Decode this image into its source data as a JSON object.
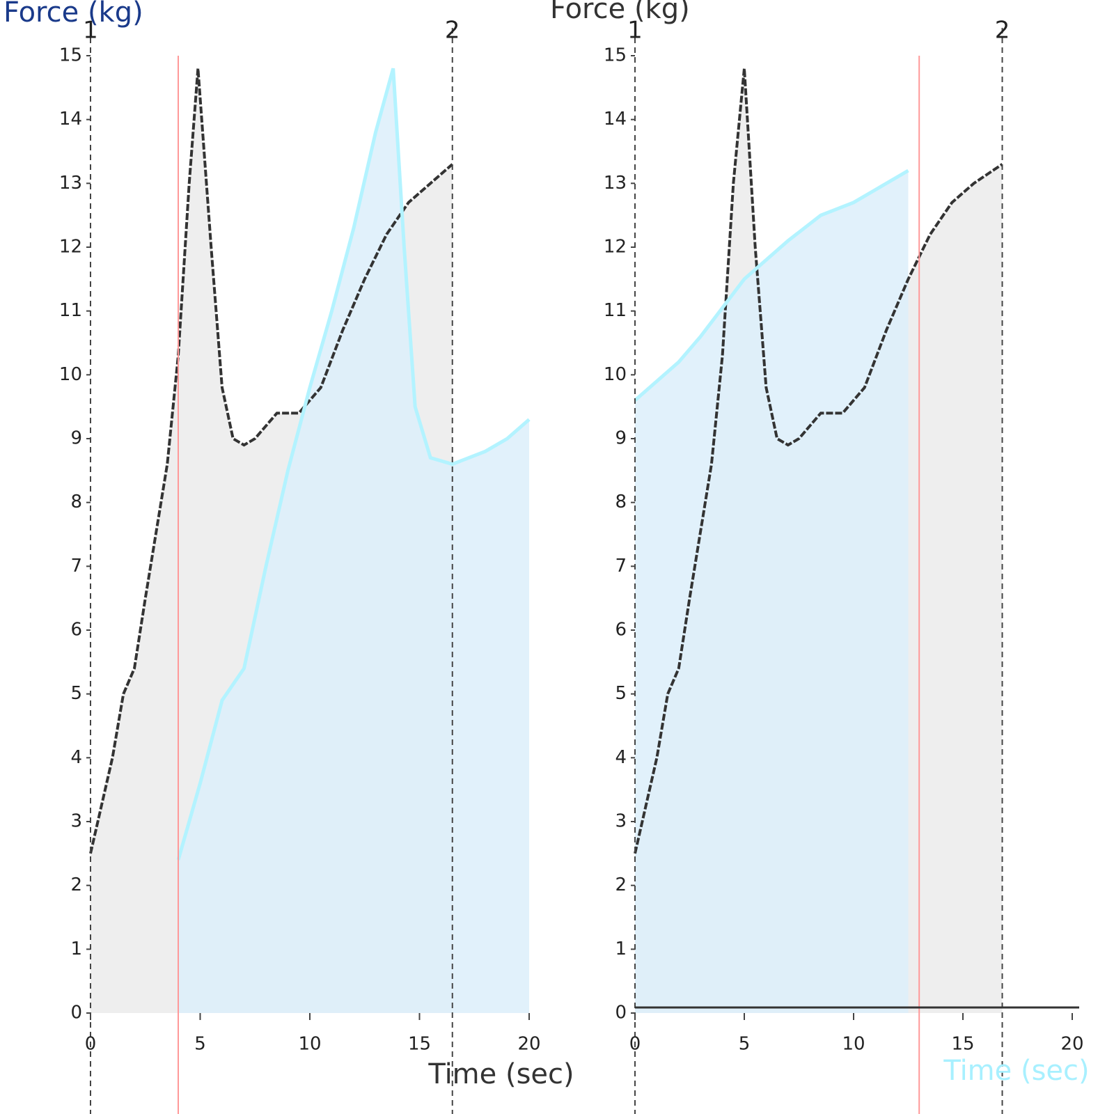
{
  "chart_data": [
    {
      "type": "line",
      "y_label": "Force (kg)",
      "x_label": "Time (sec)",
      "xlim": [
        0,
        20
      ],
      "ylim": [
        0,
        15
      ],
      "xticks": [
        0,
        5,
        10,
        15,
        20
      ],
      "yticks": [
        0,
        1,
        2,
        3,
        4,
        5,
        6,
        7,
        8,
        9,
        10,
        11,
        12,
        13,
        14,
        15
      ],
      "highlight_x": 4,
      "highlight_color": "#ff9999",
      "markers": [
        {
          "x": 0,
          "label": "1"
        },
        {
          "x": 16.5,
          "label": "2"
        }
      ],
      "series": [
        {
          "color": "#333333",
          "fill": "#ebebeb",
          "x": [
            0,
            1,
            1.5,
            2,
            2.5,
            3.5,
            4,
            4.5,
            4.9,
            5.5,
            6,
            6.5,
            7,
            7.5,
            8.5,
            9.5,
            10.5,
            11.5,
            12.5,
            13.5,
            14.5,
            15.5,
            16.5
          ],
          "values": [
            2.5,
            4,
            5,
            5.4,
            6.5,
            8.6,
            10.3,
            13,
            14.8,
            12,
            9.8,
            9,
            8.9,
            9,
            9.4,
            9.4,
            9.8,
            10.7,
            11.5,
            12.2,
            12.7,
            13,
            13.3
          ]
        },
        {
          "color": "#b3f3ff",
          "fill": "#dceefa",
          "x": [
            4,
            5,
            6,
            7,
            8,
            9,
            10,
            11,
            12,
            13,
            13.8,
            14.3,
            14.8,
            15.5,
            16.5,
            18,
            19,
            20
          ],
          "values": [
            2.4,
            3.6,
            4.9,
            5.4,
            7,
            8.5,
            9.8,
            11,
            12.3,
            13.8,
            14.8,
            12,
            9.5,
            8.7,
            8.6,
            8.8,
            9,
            9.3
          ]
        }
      ]
    },
    {
      "type": "line",
      "y_label": "Force (kg)",
      "x_label": "Time (sec)",
      "xlim": [
        0,
        20
      ],
      "ylim": [
        0,
        15
      ],
      "xticks": [
        0,
        5,
        10,
        15,
        20
      ],
      "yticks": [
        0,
        1,
        2,
        3,
        4,
        5,
        6,
        7,
        8,
        9,
        10,
        11,
        12,
        13,
        14,
        15
      ],
      "highlight_x": 13,
      "highlight_color": "#ff9999",
      "markers": [
        {
          "x": 0,
          "label": "1"
        },
        {
          "x": 16.8,
          "label": "2"
        }
      ],
      "series": [
        {
          "color": "#333333",
          "fill": "#ebebeb",
          "x": [
            0,
            1,
            1.5,
            2,
            2.5,
            3.5,
            4,
            4.5,
            5,
            5.5,
            6,
            6.5,
            7,
            7.5,
            8.5,
            9.5,
            10.5,
            11.5,
            12.5,
            13.5,
            14.5,
            15.5,
            16.8
          ],
          "values": [
            2.5,
            4,
            5,
            5.4,
            6.5,
            8.6,
            10.3,
            13,
            14.8,
            12,
            9.8,
            9,
            8.9,
            9,
            9.4,
            9.4,
            9.8,
            10.7,
            11.5,
            12.2,
            12.7,
            13,
            13.3
          ]
        },
        {
          "color": "#b3f3ff",
          "fill": "#dceefa",
          "x": [
            0,
            2,
            3,
            5,
            7,
            8.5,
            10,
            11,
            12.5
          ],
          "values": [
            9.6,
            10.2,
            10.6,
            11.5,
            12.1,
            12.5,
            12.7,
            12.9,
            13.2
          ]
        }
      ]
    }
  ]
}
